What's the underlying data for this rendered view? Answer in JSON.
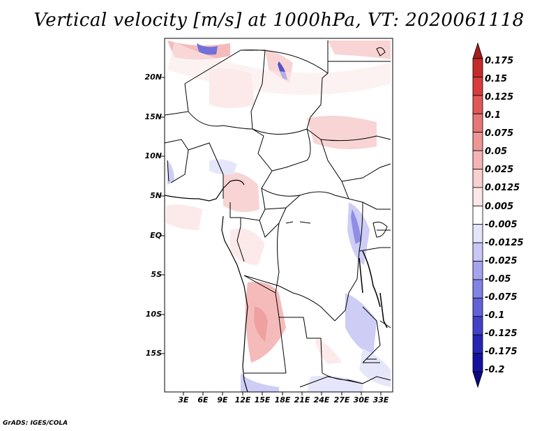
{
  "title": "Vertical velocity [m/s] at 1000hPa, VT: 2020061118",
  "credit": "GrADS: IGES/COLA",
  "lat_labels": [
    "20N",
    "15N",
    "10N",
    "5N",
    "EQ",
    "5S",
    "10S",
    "15S"
  ],
  "lon_labels": [
    "3E",
    "6E",
    "9E",
    "12E",
    "15E",
    "18E",
    "21E",
    "24E",
    "27E",
    "30E",
    "33E"
  ],
  "colorbar": {
    "labels": [
      "0.175",
      "0.15",
      "0.125",
      "0.1",
      "0.075",
      "0.05",
      "0.025",
      "0.0125",
      "0.005",
      "-0.005",
      "-0.0125",
      "-0.025",
      "-0.05",
      "-0.075",
      "-0.1",
      "-0.125",
      "-0.175",
      "-0.2"
    ],
    "colors": [
      "#a51d1d",
      "#c62b2b",
      "#d83c3c",
      "#e05858",
      "#e77676",
      "#ee9696",
      "#f4b4b4",
      "#f8d0d0",
      "#fce8e8",
      "#ffffff",
      "#e4e4fb",
      "#c8c8f6",
      "#a4a4ee",
      "#8282e4",
      "#6262d8",
      "#4242c8",
      "#2626b2",
      "#12129c",
      "#0a0a80"
    ]
  }
}
